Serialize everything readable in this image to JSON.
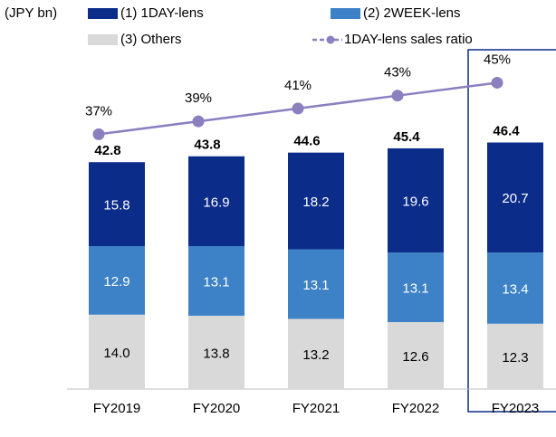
{
  "chart_data": {
    "type": "bar",
    "stacked": true,
    "unit_label": "(JPY bn)",
    "categories": [
      "FY2019",
      "FY2020",
      "FY2021",
      "FY2022",
      "FY2023"
    ],
    "series": [
      {
        "name": "(1) 1DAY-lens",
        "color": "#0c2c8a",
        "values": [
          15.8,
          16.9,
          18.2,
          19.6,
          20.7
        ],
        "value_labels": [
          "15.8",
          "16.9",
          "18.2",
          "19.6",
          "20.7"
        ]
      },
      {
        "name": "(2) 2WEEK-lens",
        "color": "#3d82c6",
        "values": [
          12.9,
          13.1,
          13.1,
          13.1,
          13.4
        ],
        "value_labels": [
          "12.9",
          "13.1",
          "13.1",
          "13.1",
          "13.4"
        ]
      },
      {
        "name": "(3) Others",
        "color": "#d9d9d9",
        "values": [
          14.0,
          13.8,
          13.2,
          12.6,
          12.3
        ],
        "value_labels": [
          "14.0",
          "13.8",
          "13.2",
          "12.6",
          "12.3"
        ]
      },
      {
        "name": "1DAY-lens sales ratio",
        "type": "line",
        "axis": "y2",
        "color": "#8b7fc0",
        "values": [
          37,
          39,
          41,
          43,
          45
        ],
        "value_labels": [
          "37%",
          "39%",
          "41%",
          "43%",
          "45%"
        ]
      }
    ],
    "totals": [
      42.8,
      43.8,
      44.6,
      45.4,
      46.4
    ],
    "ylim": [
      0,
      63
    ],
    "y2lim": [
      -3,
      49
    ]
  }
}
